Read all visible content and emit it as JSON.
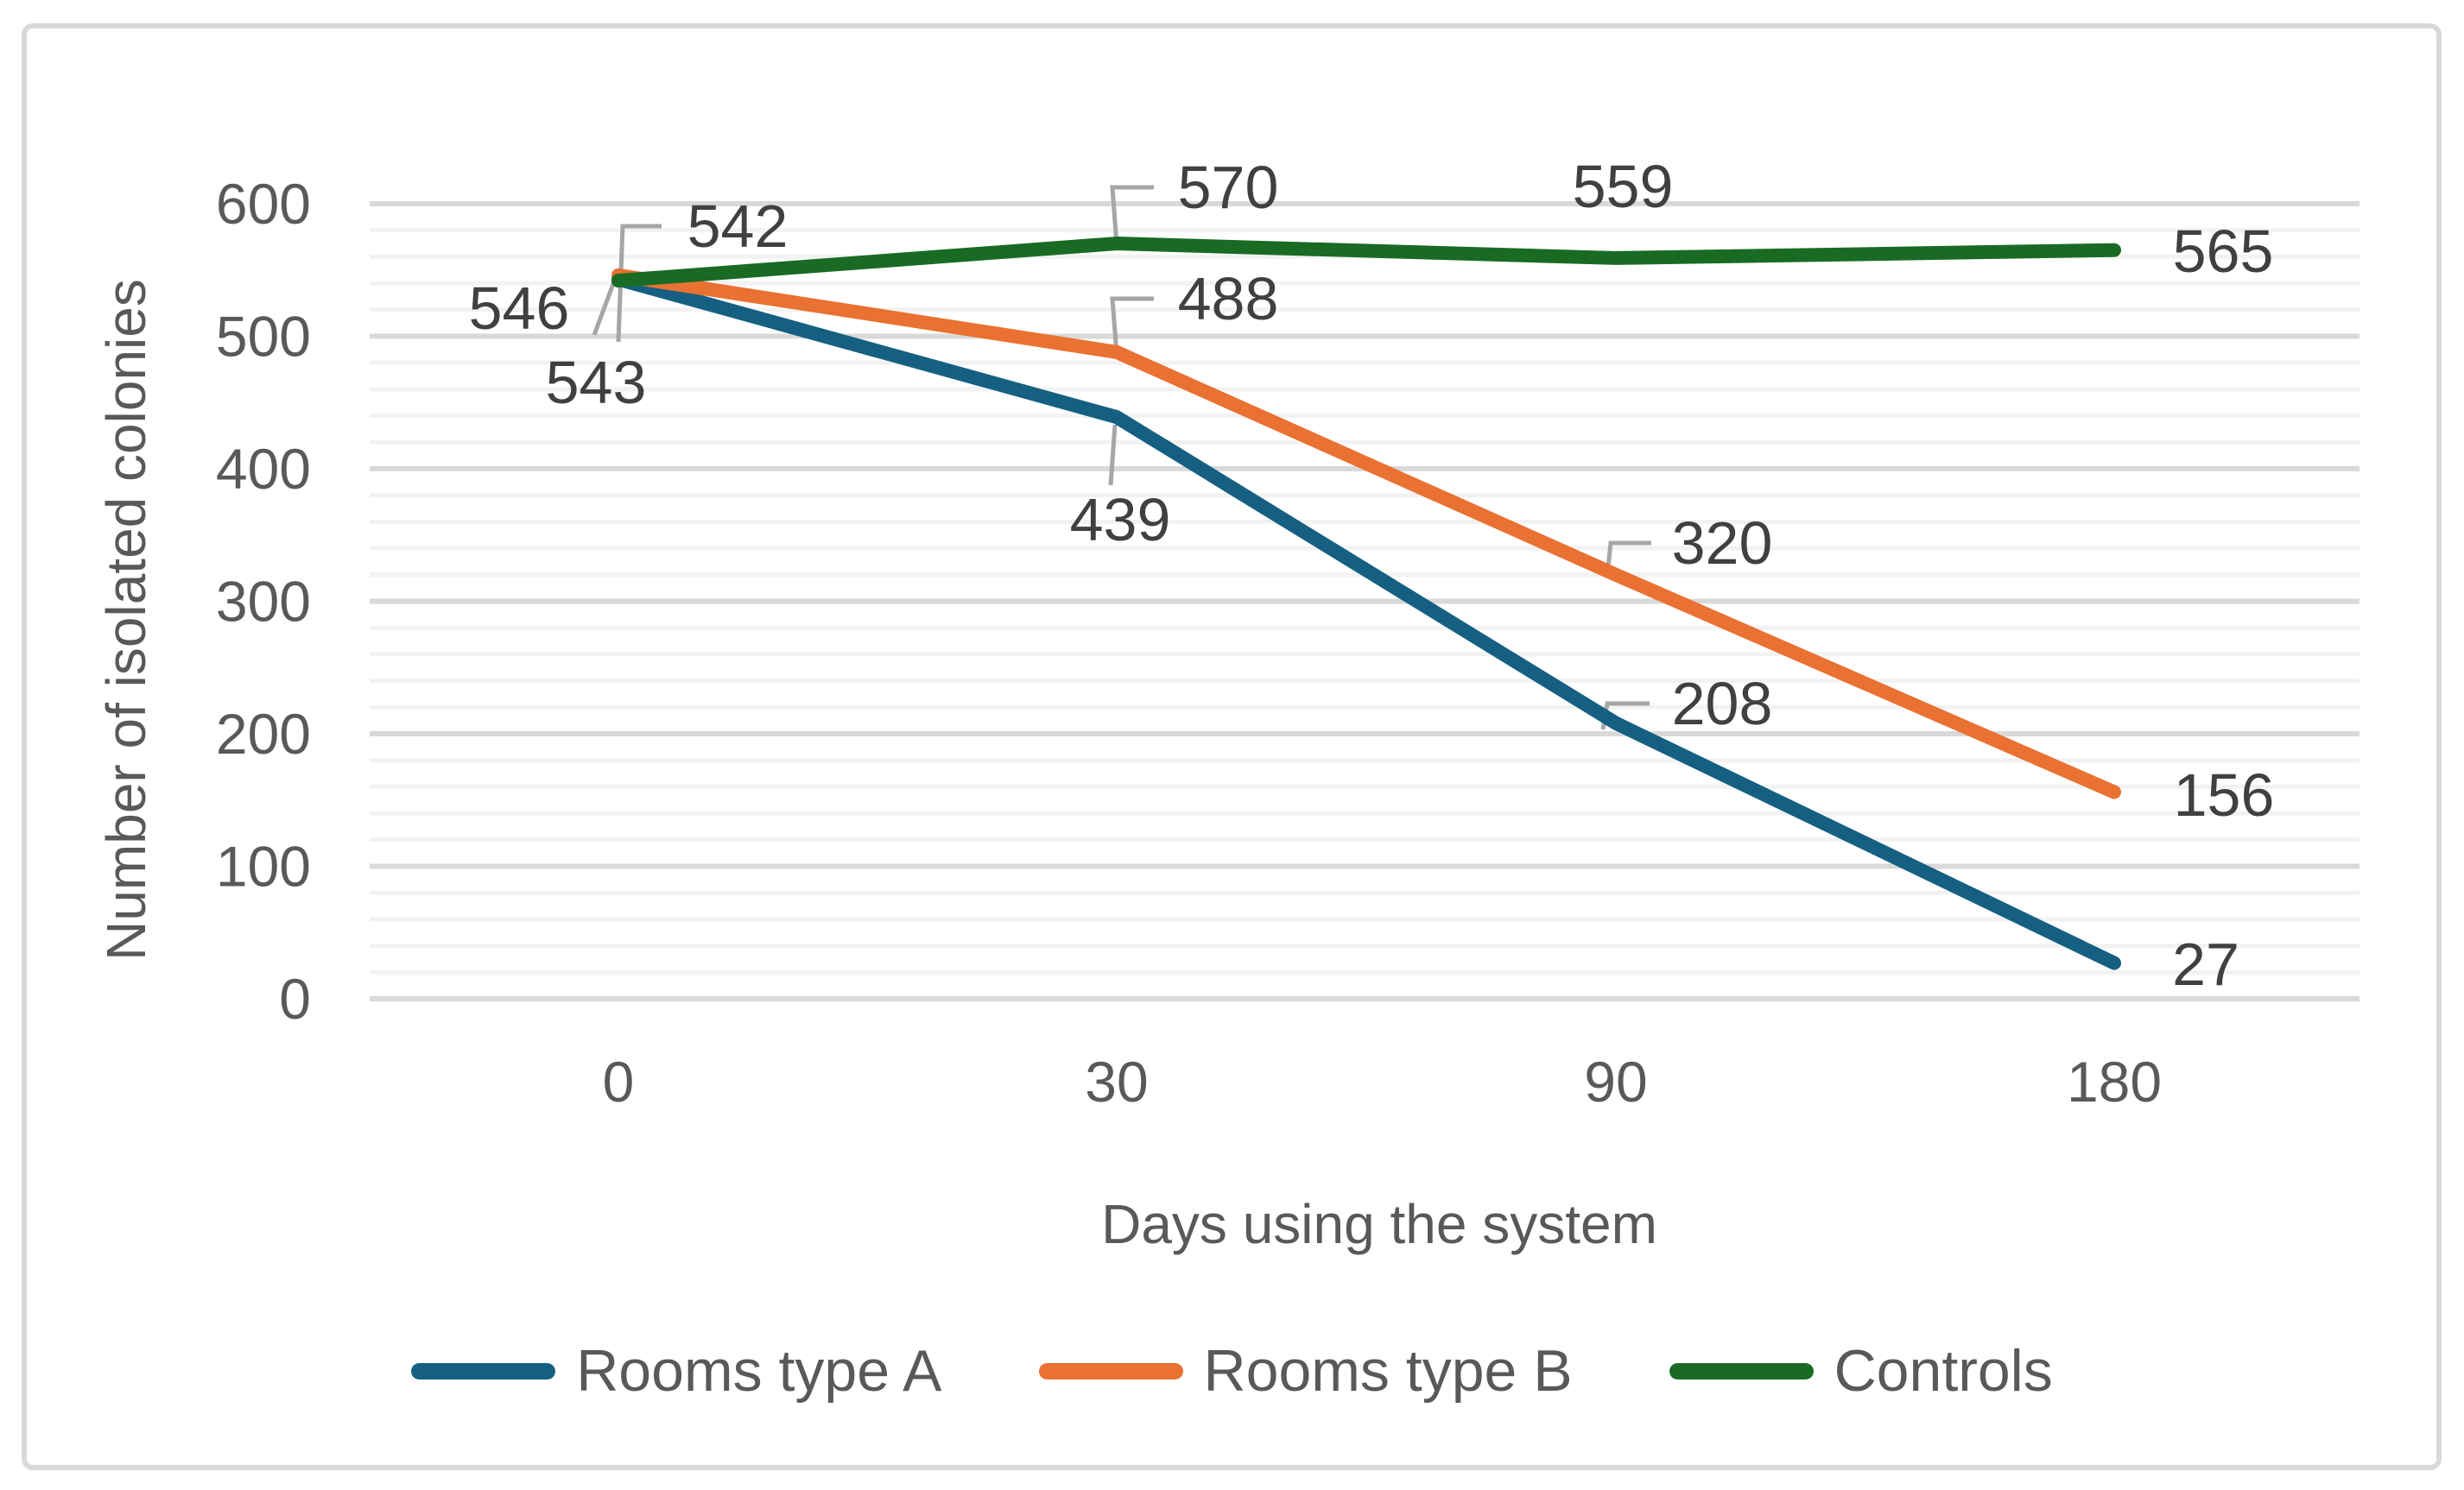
{
  "chart_data": {
    "type": "line",
    "title": "",
    "xlabel": "Days using the system",
    "ylabel": "Number of isolated colonies",
    "categories": [
      "0",
      "30",
      "90",
      "180"
    ],
    "x_values_days": [
      0,
      30,
      90,
      180
    ],
    "y_ticks": [
      0,
      100,
      200,
      300,
      400,
      500,
      600
    ],
    "ylim": [
      0,
      600
    ],
    "grid": {
      "major_step": 100,
      "minor_step": 20,
      "major_on": true,
      "minor_on": true
    },
    "legend_position": "bottom",
    "series": [
      {
        "name": "Rooms type A",
        "color": "#156082",
        "values": [
          543,
          439,
          208,
          27
        ]
      },
      {
        "name": "Rooms type B",
        "color": "#E97132",
        "values": [
          546,
          488,
          320,
          156
        ]
      },
      {
        "name": "Controls",
        "color": "#196B24",
        "values": [
          542,
          570,
          559,
          565
        ]
      }
    ],
    "data_labels_shown": true,
    "colors": {
      "axis_text": "#595959",
      "data_label": "#404040",
      "major_grid": "#D9D9D9",
      "minor_grid": "#F2F2F2",
      "leader_line": "#A6A6A6",
      "frame_border": "#D9D9D9",
      "background": "#FFFFFF"
    }
  }
}
